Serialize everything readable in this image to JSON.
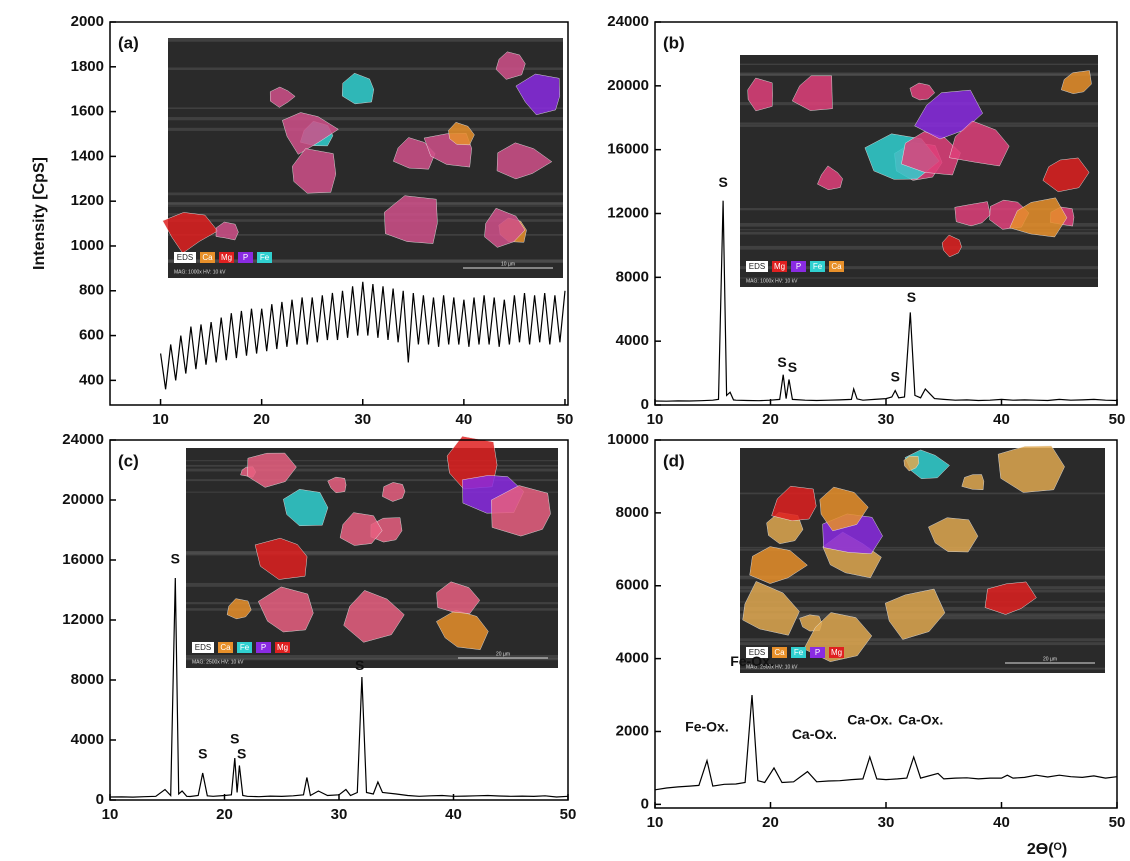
{
  "chart_data": [
    {
      "type": "line",
      "panel_label": "(a)",
      "y_label": "Intensity [CpS]",
      "x": [
        10,
        10.5,
        11,
        11.5,
        12,
        12.5,
        13,
        13.5,
        14,
        14.5,
        15,
        15.5,
        16,
        16.5,
        17,
        17.5,
        18,
        18.5,
        19,
        19.5,
        20,
        20.5,
        21,
        21.5,
        22,
        22.5,
        23,
        23.5,
        24,
        24.5,
        25,
        25.5,
        26,
        26.5,
        27,
        27.5,
        28,
        28.5,
        29,
        29.5,
        30,
        30.5,
        31,
        31.5,
        32,
        32.5,
        33,
        33.5,
        34,
        34.5,
        35,
        35.5,
        36,
        36.5,
        37,
        37.5,
        38,
        38.5,
        39,
        39.5,
        40,
        40.5,
        41,
        41.5,
        42,
        42.5,
        43,
        43.5,
        44,
        44.5,
        45,
        45.5,
        46,
        46.5,
        47,
        47.5,
        48,
        48.5,
        49,
        49.5,
        50
      ],
      "values": [
        520,
        360,
        560,
        400,
        600,
        430,
        640,
        450,
        650,
        470,
        660,
        480,
        680,
        490,
        700,
        500,
        710,
        510,
        720,
        520,
        720,
        530,
        740,
        540,
        750,
        550,
        760,
        560,
        770,
        560,
        770,
        570,
        780,
        580,
        790,
        580,
        800,
        590,
        820,
        600,
        840,
        600,
        830,
        590,
        820,
        580,
        810,
        570,
        800,
        480,
        790,
        560,
        780,
        560,
        770,
        550,
        780,
        560,
        770,
        560,
        760,
        550,
        770,
        560,
        780,
        560,
        770,
        550,
        760,
        560,
        780,
        570,
        790,
        560,
        780,
        570,
        790,
        560,
        780,
        570,
        800
      ],
      "color": "#000000",
      "xlim": [
        5,
        50.3
      ],
      "ylim": [
        290,
        2000
      ],
      "xticks": [
        10,
        20,
        30,
        40,
        50
      ],
      "yticks": [
        400,
        600,
        800,
        1000,
        1200,
        1400,
        1600,
        1800,
        2000
      ],
      "annotations": [],
      "inset": {
        "legend": [
          {
            "label": "EDS",
            "color": "#ffffff"
          },
          {
            "label": "Ca",
            "color": "#e8902a"
          },
          {
            "label": "Mg",
            "color": "#e02020"
          },
          {
            "label": "P",
            "color": "#8a2be2"
          },
          {
            "label": "Fe",
            "color": "#30d0d0"
          }
        ],
        "caption": "MAG: 1000x   HV: 10 kV",
        "scale": "10 µm",
        "tint": "#d0508a"
      }
    },
    {
      "type": "line",
      "panel_label": "(b)",
      "x": [
        10,
        11,
        12,
        13,
        14,
        15,
        15.5,
        15.9,
        16.2,
        16.5,
        16.8,
        17,
        18,
        19,
        20,
        20.8,
        21.1,
        21.35,
        21.6,
        21.9,
        23,
        24,
        25,
        26,
        27,
        27.2,
        27.5,
        28,
        29,
        30,
        30.5,
        30.8,
        31.1,
        31.6,
        32.1,
        32.5,
        33,
        33.4,
        33.8,
        34.2,
        35,
        36,
        37,
        38,
        39,
        40,
        41,
        42,
        43,
        44,
        45,
        46,
        47,
        48,
        49,
        50
      ],
      "values": [
        250,
        240,
        260,
        250,
        270,
        300,
        350,
        12800,
        600,
        800,
        320,
        300,
        280,
        270,
        300,
        350,
        1900,
        400,
        1600,
        350,
        300,
        280,
        300,
        320,
        350,
        1000,
        380,
        300,
        350,
        400,
        500,
        900,
        450,
        500,
        5800,
        600,
        450,
        1000,
        700,
        400,
        350,
        300,
        320,
        280,
        300,
        350,
        300,
        320,
        300,
        280,
        350,
        300,
        320,
        350,
        300,
        280
      ],
      "color": "#000000",
      "xlim": [
        10,
        50
      ],
      "ylim": [
        0,
        24000
      ],
      "xticks": [
        10,
        20,
        30,
        40,
        50
      ],
      "yticks": [
        0,
        4000,
        8000,
        12000,
        16000,
        20000,
        24000
      ],
      "annotations": [
        {
          "text": "S",
          "x": 15.9,
          "y": 13900
        },
        {
          "text": "S",
          "x": 21.0,
          "y": 2600
        },
        {
          "text": "S",
          "x": 21.9,
          "y": 2300
        },
        {
          "text": "S",
          "x": 30.8,
          "y": 1700
        },
        {
          "text": "S",
          "x": 32.2,
          "y": 6700
        }
      ],
      "inset": {
        "legend": [
          {
            "label": "EDS",
            "color": "#ffffff"
          },
          {
            "label": "Mg",
            "color": "#e02020"
          },
          {
            "label": "P",
            "color": "#8a2be2"
          },
          {
            "label": "Fe",
            "color": "#30d0d0"
          },
          {
            "label": "Ca",
            "color": "#e8902a"
          }
        ],
        "caption": "MAG: 1000x   HV: 10 kV",
        "scale": "",
        "tint": "#e0407a"
      }
    },
    {
      "type": "line",
      "panel_label": "(c)",
      "x": [
        10,
        11,
        12,
        13,
        14,
        14.8,
        15.3,
        15.7,
        16.0,
        16.3,
        16.7,
        17,
        17.7,
        18.1,
        18.5,
        19,
        20,
        20.6,
        20.9,
        21.1,
        21.3,
        21.6,
        22,
        23,
        24,
        25,
        26,
        26.9,
        27.2,
        27.5,
        28.2,
        29,
        30,
        30.6,
        31,
        31.6,
        32.0,
        32.4,
        33,
        33.4,
        33.8,
        35,
        36,
        37,
        38,
        39,
        40,
        41,
        42,
        43,
        44,
        45,
        46,
        47,
        48,
        49,
        50
      ],
      "values": [
        200,
        210,
        190,
        220,
        250,
        700,
        300,
        14800,
        400,
        600,
        250,
        230,
        300,
        1800,
        280,
        250,
        300,
        350,
        2800,
        500,
        2300,
        300,
        250,
        220,
        260,
        240,
        280,
        350,
        1500,
        300,
        600,
        300,
        350,
        700,
        300,
        500,
        8200,
        500,
        400,
        1200,
        500,
        400,
        300,
        250,
        280,
        300,
        250,
        260,
        280,
        300,
        270,
        250,
        260,
        240,
        280,
        200,
        250
      ],
      "color": "#000000",
      "xlim": [
        10,
        50
      ],
      "ylim": [
        0,
        24000
      ],
      "xticks": [
        10,
        20,
        30,
        40,
        50
      ],
      "yticks": [
        0,
        4000,
        8000,
        12000,
        16000,
        20000,
        24000
      ],
      "annotations": [
        {
          "text": "S",
          "x": 15.7,
          "y": 16000
        },
        {
          "text": "S",
          "x": 18.1,
          "y": 3000
        },
        {
          "text": "S",
          "x": 20.9,
          "y": 4000
        },
        {
          "text": "S",
          "x": 21.5,
          "y": 3000
        },
        {
          "text": "S",
          "x": 31.8,
          "y": 8900
        }
      ],
      "inset": {
        "legend": [
          {
            "label": "EDS",
            "color": "#ffffff"
          },
          {
            "label": "Ca",
            "color": "#e8902a"
          },
          {
            "label": "Fe",
            "color": "#30d0d0"
          },
          {
            "label": "P",
            "color": "#8a2be2"
          },
          {
            "label": "Mg",
            "color": "#e02020"
          }
        ],
        "caption": "MAG: 2500x   HV: 10 kV",
        "scale": "20 µm",
        "tint": "#e86080"
      }
    },
    {
      "type": "line",
      "panel_label": "(d)",
      "x_label": "2ϴ(ᴼ)",
      "x": [
        10,
        11,
        12,
        13,
        13.8,
        14.5,
        15,
        16,
        17,
        17.8,
        18.4,
        18.9,
        19.5,
        20.3,
        21,
        22,
        23.2,
        24,
        25,
        26,
        27,
        28,
        28.6,
        29.2,
        30,
        31,
        31.8,
        32.4,
        33,
        34.5,
        35,
        36,
        37,
        38,
        39,
        40,
        40.5,
        41,
        42,
        43,
        44,
        45,
        46,
        47,
        48,
        49,
        50
      ],
      "values": [
        400,
        450,
        480,
        500,
        520,
        1200,
        500,
        550,
        560,
        600,
        3000,
        650,
        600,
        1000,
        600,
        620,
        900,
        620,
        640,
        650,
        680,
        700,
        1300,
        700,
        680,
        700,
        720,
        1300,
        720,
        850,
        700,
        720,
        730,
        700,
        720,
        720,
        800,
        720,
        740,
        800,
        750,
        800,
        760,
        740,
        780,
        720,
        760
      ],
      "color": "#000000",
      "xlim": [
        10,
        50
      ],
      "ylim": [
        -100,
        10000
      ],
      "xticks": [
        10,
        20,
        30,
        40,
        50
      ],
      "yticks": [
        0,
        2000,
        4000,
        6000,
        8000,
        10000
      ],
      "annotations": [
        {
          "text": "Fe-Ox.",
          "x": 14.5,
          "y": 2100
        },
        {
          "text": "Fe-Ox.",
          "x": 18.4,
          "y": 3900
        },
        {
          "text": "Ca-Ox.",
          "x": 23.8,
          "y": 1900
        },
        {
          "text": "Ca-Ox.",
          "x": 28.6,
          "y": 2300
        },
        {
          "text": "Ca-Ox.",
          "x": 33.0,
          "y": 2300
        }
      ],
      "inset": {
        "legend": [
          {
            "label": "EDS",
            "color": "#ffffff"
          },
          {
            "label": "Ca",
            "color": "#e8902a"
          },
          {
            "label": "Fe",
            "color": "#30d0d0"
          },
          {
            "label": "P",
            "color": "#8a2be2"
          },
          {
            "label": "Mg",
            "color": "#e02020"
          }
        ],
        "caption": "MAG: 2500x   HV: 10 kV",
        "scale": "20 µm",
        "tint": "#e0a850"
      }
    }
  ]
}
